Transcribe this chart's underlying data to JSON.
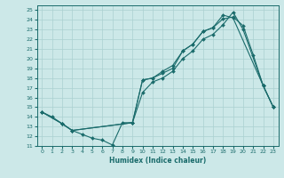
{
  "xlabel": "Humidex (Indice chaleur)",
  "bg_color": "#cce8e8",
  "line_color": "#1a6b6b",
  "grid_color": "#aad0d0",
  "xlim": [
    -0.5,
    23.5
  ],
  "ylim": [
    11,
    25.5
  ],
  "xticks": [
    0,
    1,
    2,
    3,
    4,
    5,
    6,
    7,
    8,
    9,
    10,
    11,
    12,
    13,
    14,
    15,
    16,
    17,
    18,
    19,
    20,
    21,
    22,
    23
  ],
  "yticks": [
    11,
    12,
    13,
    14,
    15,
    16,
    17,
    18,
    19,
    20,
    21,
    22,
    23,
    24,
    25
  ],
  "line1_x": [
    0,
    1,
    2,
    3,
    4,
    5,
    6,
    7,
    8,
    9,
    10,
    11,
    12,
    13,
    14,
    15,
    16,
    17,
    18,
    19,
    22,
    23
  ],
  "line1_y": [
    14.5,
    14.0,
    13.3,
    12.6,
    12.2,
    11.8,
    11.6,
    11.1,
    13.4,
    13.4,
    17.8,
    18.0,
    18.5,
    19.0,
    20.8,
    21.5,
    22.8,
    23.2,
    24.5,
    24.2,
    17.2,
    15.0
  ],
  "line2_x": [
    0,
    2,
    3,
    9,
    10,
    11,
    12,
    13,
    14,
    15,
    16,
    17,
    18,
    19,
    20,
    21,
    22,
    23
  ],
  "line2_y": [
    14.5,
    13.3,
    12.6,
    13.4,
    17.8,
    18.0,
    18.7,
    19.3,
    20.8,
    21.5,
    22.8,
    23.2,
    24.1,
    24.3,
    23.4,
    20.4,
    17.2,
    15.0
  ],
  "line3_x": [
    0,
    2,
    3,
    9,
    10,
    11,
    12,
    13,
    14,
    15,
    16,
    17,
    18,
    19,
    20,
    22,
    23
  ],
  "line3_y": [
    14.5,
    13.3,
    12.6,
    13.4,
    16.5,
    17.6,
    18.0,
    18.7,
    20.0,
    20.8,
    22.0,
    22.5,
    23.5,
    24.8,
    23.0,
    17.2,
    15.0
  ]
}
